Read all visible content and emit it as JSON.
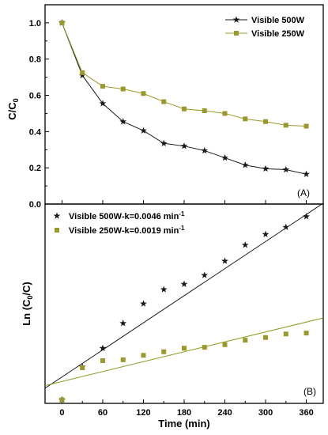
{
  "colors": {
    "visible_500w": "#1a1a1a",
    "visible_250w": "#9a9a2a",
    "fit_500w": "#1a1a1a",
    "fit_250w": "#8a9a20"
  },
  "chart_data": [
    {
      "type": "line",
      "panel_label": "(A)",
      "xlabel": "",
      "ylabel": "C/C",
      "ylabel_sub": "0",
      "xlim": [
        -25,
        385
      ],
      "ylim": [
        0.0,
        1.1
      ],
      "yticks": [
        "0.0",
        "0.2",
        "0.4",
        "0.6",
        "0.8",
        "1.0"
      ],
      "ytick_values": [
        0.0,
        0.2,
        0.4,
        0.6,
        0.8,
        1.0
      ],
      "legend_position": "top-right",
      "grid": false,
      "series": [
        {
          "name": "Visible 500W",
          "marker": "star",
          "color_key": "visible_500w",
          "x": [
            0,
            30,
            60,
            90,
            120,
            150,
            180,
            210,
            240,
            270,
            300,
            330,
            360
          ],
          "y": [
            1.0,
            0.71,
            0.555,
            0.455,
            0.405,
            0.335,
            0.32,
            0.295,
            0.255,
            0.215,
            0.195,
            0.19,
            0.165
          ]
        },
        {
          "name": "Visible 250W",
          "marker": "square",
          "color_key": "visible_250w",
          "x": [
            0,
            30,
            60,
            90,
            120,
            150,
            180,
            210,
            240,
            270,
            300,
            330,
            360
          ],
          "y": [
            1.0,
            0.725,
            0.65,
            0.635,
            0.61,
            0.565,
            0.525,
            0.515,
            0.5,
            0.47,
            0.455,
            0.435,
            0.43
          ]
        }
      ]
    },
    {
      "type": "scatter",
      "panel_label": "(B)",
      "xlabel": "Time (min)",
      "ylabel": "Ln (C",
      "ylabel_sub": "0",
      "ylabel_tail": "/C)",
      "xlim": [
        -25,
        385
      ],
      "ylim": [
        -0.12,
        1.0
      ],
      "xticks": [
        "0",
        "60",
        "120",
        "180",
        "240",
        "300",
        "360"
      ],
      "xtick_values": [
        0,
        60,
        120,
        180,
        240,
        300,
        360
      ],
      "legend_position": "top-left",
      "grid": false,
      "series": [
        {
          "name_prefix": "Visible 500W-k=0.0046 min",
          "name_sup": "-1",
          "marker": "star",
          "color_key": "visible_500w",
          "x": [
            0,
            30,
            60,
            90,
            120,
            150,
            180,
            210,
            240,
            270,
            300,
            330,
            360
          ],
          "y": [
            -0.1,
            0.085,
            0.19,
            0.33,
            0.44,
            0.52,
            0.55,
            0.6,
            0.68,
            0.77,
            0.83,
            0.87,
            0.93
          ],
          "fit_line": {
            "x": [
              -25,
              385
            ],
            "y": [
              -0.035,
              1.005
            ],
            "color_key": "fit_500w"
          }
        },
        {
          "name_prefix": "Visible 250W-k=0.0019 min",
          "name_sup": "-1",
          "marker": "square",
          "color_key": "visible_250w",
          "x": [
            0,
            30,
            60,
            90,
            120,
            150,
            180,
            210,
            240,
            270,
            300,
            330,
            360
          ],
          "y": [
            -0.1,
            0.08,
            0.12,
            0.125,
            0.15,
            0.17,
            0.19,
            0.195,
            0.21,
            0.235,
            0.25,
            0.27,
            0.275
          ],
          "fit_line": {
            "x": [
              -25,
              385
            ],
            "y": [
              -0.02,
              0.36
            ],
            "color_key": "fit_250w"
          }
        }
      ]
    }
  ]
}
